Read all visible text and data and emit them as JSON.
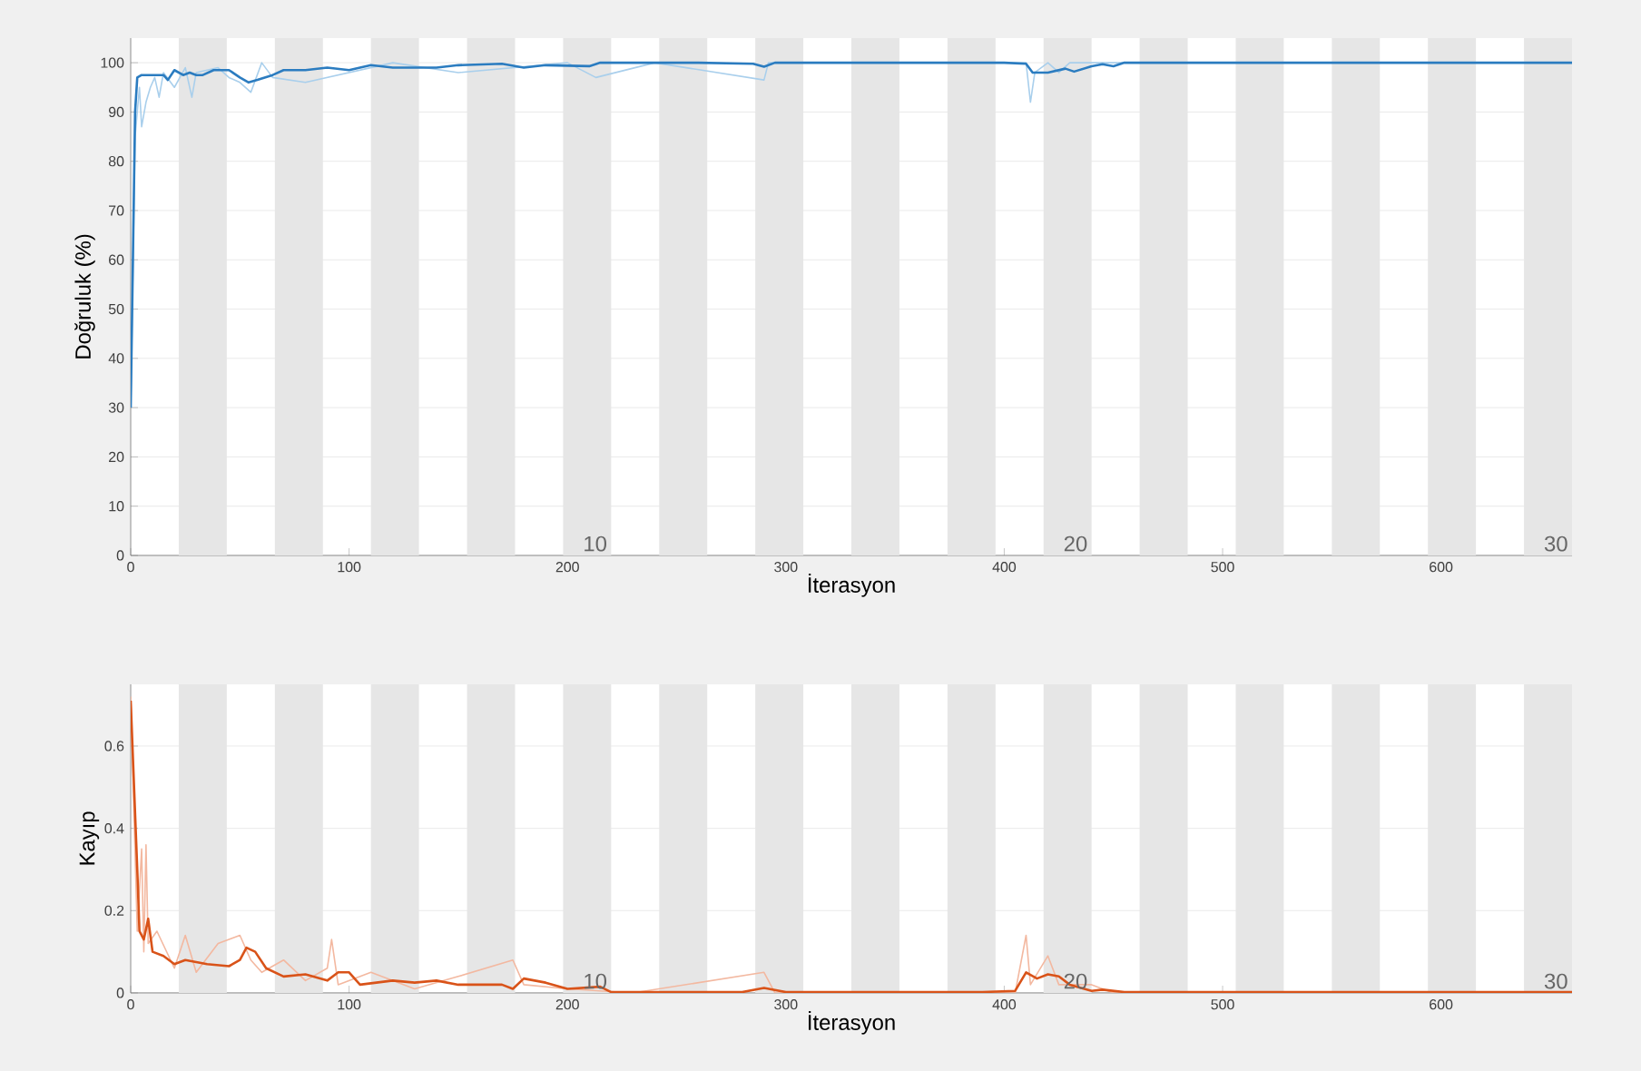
{
  "chart_data": [
    {
      "type": "line",
      "xlabel": "İterasyon",
      "ylabel": "Doğruluk (%)",
      "xlim": [
        0,
        660
      ],
      "ylim": [
        0,
        105
      ],
      "xticks": [
        0,
        100,
        200,
        300,
        400,
        500,
        600
      ],
      "yticks": [
        0,
        10,
        20,
        30,
        40,
        50,
        60,
        70,
        80,
        90,
        100
      ],
      "grid": "y",
      "bands": [
        {
          "axis": "x",
          "from": 22,
          "to": 44,
          "color": "#e6e6e6"
        },
        {
          "axis": "x",
          "from": 66,
          "to": 88,
          "color": "#e6e6e6"
        },
        {
          "axis": "x",
          "from": 110,
          "to": 132,
          "color": "#e6e6e6"
        },
        {
          "axis": "x",
          "from": 154,
          "to": 176,
          "color": "#e6e6e6"
        },
        {
          "axis": "x",
          "from": 198,
          "to": 220,
          "color": "#e6e6e6"
        },
        {
          "axis": "x",
          "from": 242,
          "to": 264,
          "color": "#e6e6e6"
        },
        {
          "axis": "x",
          "from": 286,
          "to": 308,
          "color": "#e6e6e6"
        },
        {
          "axis": "x",
          "from": 330,
          "to": 352,
          "color": "#e6e6e6"
        },
        {
          "axis": "x",
          "from": 374,
          "to": 396,
          "color": "#e6e6e6"
        },
        {
          "axis": "x",
          "from": 418,
          "to": 440,
          "color": "#e6e6e6"
        },
        {
          "axis": "x",
          "from": 462,
          "to": 484,
          "color": "#e6e6e6"
        },
        {
          "axis": "x",
          "from": 506,
          "to": 528,
          "color": "#e6e6e6"
        },
        {
          "axis": "x",
          "from": 550,
          "to": 572,
          "color": "#e6e6e6"
        },
        {
          "axis": "x",
          "from": 594,
          "to": 616,
          "color": "#e6e6e6"
        },
        {
          "axis": "x",
          "from": 638,
          "to": 660,
          "color": "#e6e6e6"
        }
      ],
      "annotations": [
        {
          "text": "10",
          "x": 220,
          "y": 0
        },
        {
          "text": "20",
          "x": 440,
          "y": 0
        },
        {
          "text": "30",
          "x": 660,
          "y": 0
        }
      ],
      "series": [
        {
          "color": "#a9cfec",
          "x": [
            0,
            2,
            4,
            5,
            7,
            9,
            11,
            13,
            15,
            20,
            25,
            28,
            30,
            40,
            45,
            50,
            55,
            60,
            65,
            80,
            100,
            120,
            150,
            200,
            213,
            240,
            290,
            292,
            410,
            412,
            414,
            420,
            425,
            430,
            660
          ],
          "values": [
            30,
            85,
            95,
            87,
            92,
            95,
            97,
            93,
            98,
            95,
            99,
            93,
            98,
            99,
            97,
            96,
            94,
            100,
            97,
            96,
            98,
            100,
            98,
            100,
            97,
            100,
            96.5,
            100,
            100,
            92,
            98,
            100,
            98,
            100,
            100
          ]
        },
        {
          "color": "#2b7cc0",
          "x": [
            0,
            2,
            3,
            5,
            10,
            15,
            17,
            20,
            24,
            27,
            30,
            33,
            38,
            45,
            50,
            54,
            58,
            65,
            70,
            80,
            90,
            100,
            110,
            120,
            140,
            150,
            170,
            180,
            190,
            210,
            215,
            260,
            285,
            290,
            295,
            400,
            410,
            413,
            420,
            428,
            432,
            440,
            445,
            450,
            455,
            660
          ],
          "values": [
            30,
            90,
            97,
            97.5,
            97.5,
            97.5,
            96.5,
            98.5,
            97.5,
            98,
            97.5,
            97.5,
            98.5,
            98.5,
            97,
            96,
            96.5,
            97.5,
            98.5,
            98.5,
            99,
            98.5,
            99.5,
            99,
            99,
            99.5,
            99.8,
            99,
            99.5,
            99.3,
            100,
            100,
            99.8,
            99.2,
            100,
            100,
            99.8,
            98,
            98,
            98.8,
            98.2,
            99.3,
            99.7,
            99.3,
            100,
            100
          ]
        }
      ]
    },
    {
      "type": "line",
      "xlabel": "İterasyon",
      "ylabel": "Kayıp",
      "xlim": [
        0,
        660
      ],
      "ylim": [
        0,
        0.75
      ],
      "xticks": [
        0,
        100,
        200,
        300,
        400,
        500,
        600
      ],
      "yticks": [
        0,
        0.2,
        0.4,
        0.6
      ],
      "grid": "y",
      "bands": [
        {
          "axis": "x",
          "from": 22,
          "to": 44,
          "color": "#e6e6e6"
        },
        {
          "axis": "x",
          "from": 66,
          "to": 88,
          "color": "#e6e6e6"
        },
        {
          "axis": "x",
          "from": 110,
          "to": 132,
          "color": "#e6e6e6"
        },
        {
          "axis": "x",
          "from": 154,
          "to": 176,
          "color": "#e6e6e6"
        },
        {
          "axis": "x",
          "from": 198,
          "to": 220,
          "color": "#e6e6e6"
        },
        {
          "axis": "x",
          "from": 242,
          "to": 264,
          "color": "#e6e6e6"
        },
        {
          "axis": "x",
          "from": 286,
          "to": 308,
          "color": "#e6e6e6"
        },
        {
          "axis": "x",
          "from": 330,
          "to": 352,
          "color": "#e6e6e6"
        },
        {
          "axis": "x",
          "from": 374,
          "to": 396,
          "color": "#e6e6e6"
        },
        {
          "axis": "x",
          "from": 418,
          "to": 440,
          "color": "#e6e6e6"
        },
        {
          "axis": "x",
          "from": 462,
          "to": 484,
          "color": "#e6e6e6"
        },
        {
          "axis": "x",
          "from": 506,
          "to": 528,
          "color": "#e6e6e6"
        },
        {
          "axis": "x",
          "from": 550,
          "to": 572,
          "color": "#e6e6e6"
        },
        {
          "axis": "x",
          "from": 594,
          "to": 616,
          "color": "#e6e6e6"
        },
        {
          "axis": "x",
          "from": 638,
          "to": 660,
          "color": "#e6e6e6"
        }
      ],
      "annotations": [
        {
          "text": "10",
          "x": 220,
          "y": 0
        },
        {
          "text": "20",
          "x": 440,
          "y": 0
        },
        {
          "text": "30",
          "x": 660,
          "y": 0
        }
      ],
      "series": [
        {
          "color": "#f3b8a0",
          "x": [
            0,
            3,
            5,
            6,
            7,
            8,
            12,
            20,
            25,
            30,
            40,
            50,
            55,
            60,
            70,
            80,
            90,
            92,
            95,
            110,
            130,
            150,
            175,
            180,
            200,
            230,
            290,
            295,
            405,
            410,
            412,
            420,
            425,
            440,
            450,
            660
          ],
          "values": [
            0.72,
            0.15,
            0.35,
            0.1,
            0.36,
            0.12,
            0.15,
            0.06,
            0.14,
            0.05,
            0.12,
            0.14,
            0.08,
            0.05,
            0.08,
            0.03,
            0.06,
            0.13,
            0.02,
            0.05,
            0.01,
            0.04,
            0.08,
            0.02,
            0.01,
            0,
            0.05,
            0,
            0,
            0.14,
            0.02,
            0.09,
            0.02,
            0.02,
            0,
            0
          ]
        },
        {
          "color": "#d95319",
          "x": [
            0,
            3,
            4,
            6,
            8,
            10,
            15,
            20,
            25,
            35,
            45,
            50,
            53,
            57,
            62,
            70,
            80,
            90,
            95,
            100,
            105,
            120,
            130,
            140,
            150,
            170,
            175,
            180,
            190,
            200,
            215,
            220,
            280,
            290,
            300,
            390,
            405,
            410,
            415,
            420,
            425,
            430,
            440,
            445,
            455,
            660
          ],
          "values": [
            0.71,
            0.3,
            0.15,
            0.13,
            0.18,
            0.1,
            0.09,
            0.07,
            0.08,
            0.07,
            0.065,
            0.08,
            0.11,
            0.1,
            0.06,
            0.04,
            0.045,
            0.03,
            0.05,
            0.05,
            0.02,
            0.03,
            0.025,
            0.03,
            0.02,
            0.02,
            0.01,
            0.035,
            0.025,
            0.01,
            0.015,
            0.002,
            0.002,
            0.012,
            0.002,
            0.002,
            0.005,
            0.05,
            0.035,
            0.045,
            0.04,
            0.02,
            0.005,
            0.008,
            0.002,
            0.002
          ]
        }
      ]
    }
  ]
}
